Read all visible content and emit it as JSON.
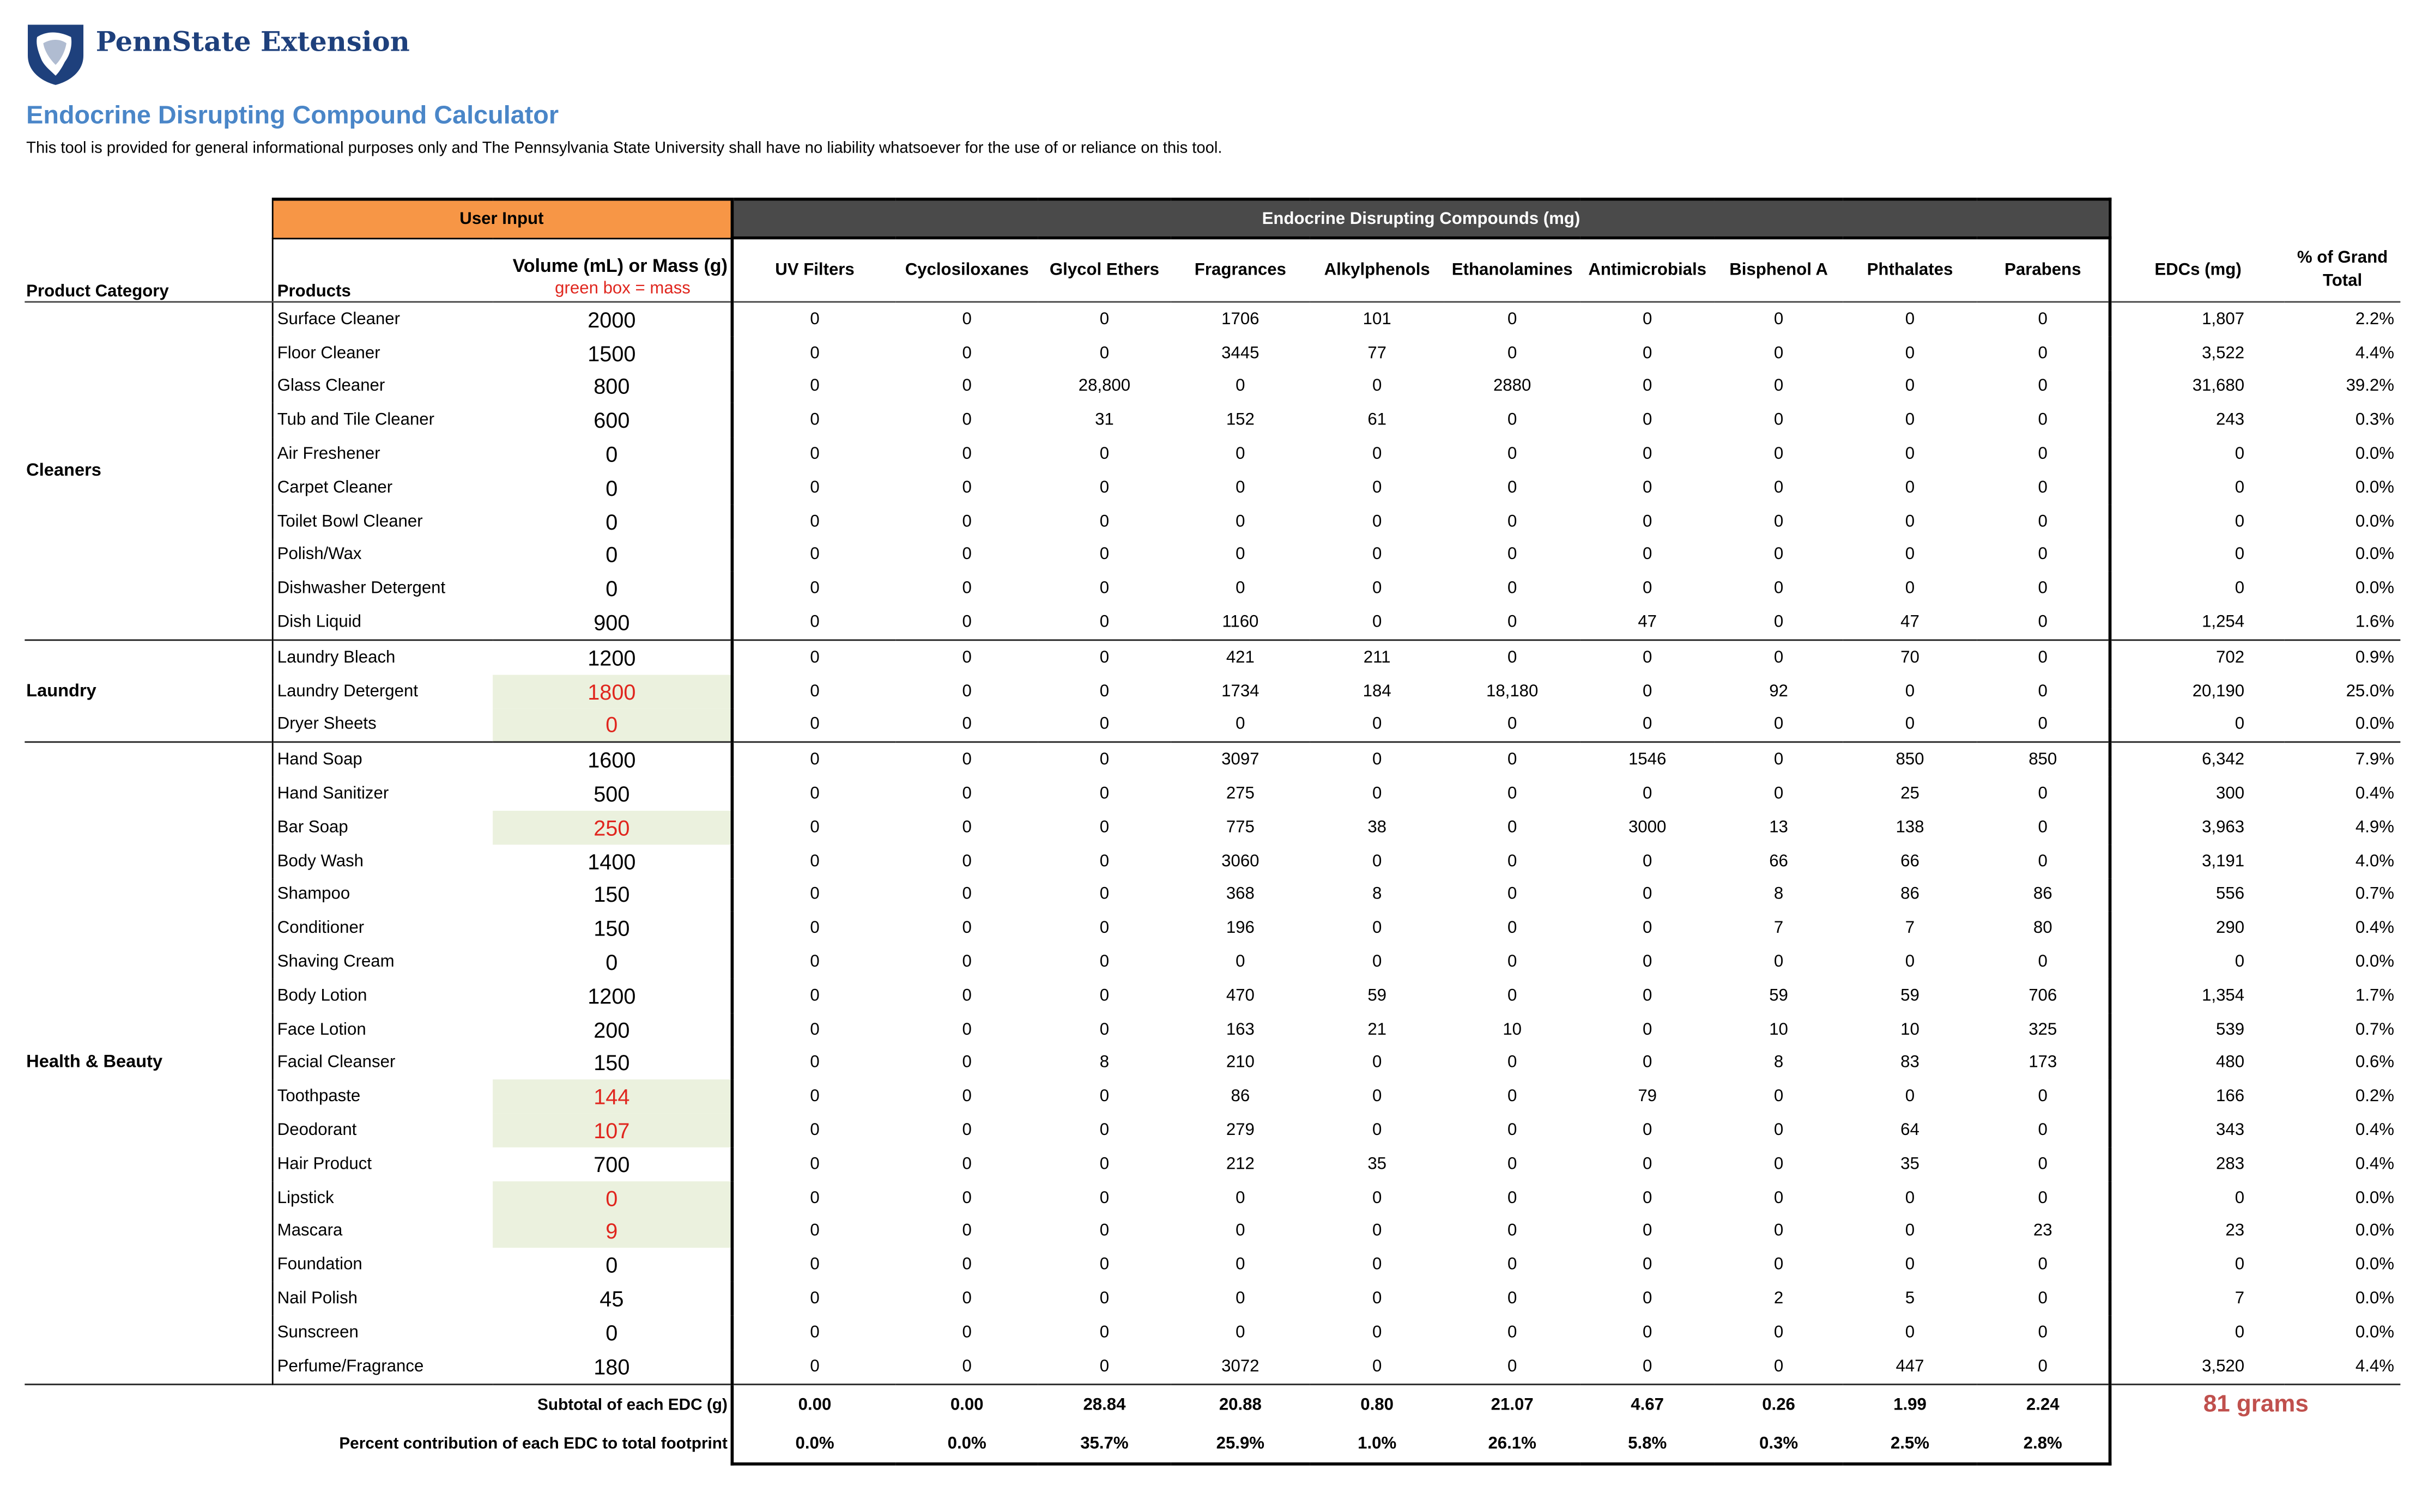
{
  "header": {
    "brand": "PennState Extension",
    "title": "Endocrine Disrupting Compound Calculator",
    "disclaimer": "This tool is provided for general informational purposes only and The Pennsylvania State University shall have no liability whatsoever for the use of or reliance on this tool."
  },
  "table": {
    "user_input": "User Input",
    "edc_group": "Endocrine Disrupting Compounds (mg)",
    "columns": {
      "category": "Product Category",
      "product": "Products",
      "volume": "Volume (mL) or Mass (g)",
      "volume_note": "green box = mass",
      "compounds": [
        "UV Filters",
        "Cyclosiloxanes",
        "Glycol Ethers",
        "Fragrances",
        "Alkylphenols",
        "Ethanolamines",
        "Antimicrobials",
        "Bisphenol A",
        "Phthalates",
        "Parabens"
      ],
      "edcs": "EDCs (mg)",
      "percent": "% of Grand Total"
    },
    "groups": [
      {
        "category": "Cleaners",
        "rows": [
          {
            "product": "Surface Cleaner",
            "volume": "2000",
            "mass": false,
            "cells": [
              "0",
              "0",
              "0",
              "1706",
              "101",
              "0",
              "0",
              "0",
              "0",
              "0"
            ],
            "edcs": "1,807",
            "percent": "2.2%"
          },
          {
            "product": "Floor Cleaner",
            "volume": "1500",
            "mass": false,
            "cells": [
              "0",
              "0",
              "0",
              "3445",
              "77",
              "0",
              "0",
              "0",
              "0",
              "0"
            ],
            "edcs": "3,522",
            "percent": "4.4%"
          },
          {
            "product": "Glass Cleaner",
            "volume": "800",
            "mass": false,
            "cells": [
              "0",
              "0",
              "28,800",
              "0",
              "0",
              "2880",
              "0",
              "0",
              "0",
              "0"
            ],
            "edcs": "31,680",
            "percent": "39.2%"
          },
          {
            "product": "Tub and Tile Cleaner",
            "volume": "600",
            "mass": false,
            "cells": [
              "0",
              "0",
              "31",
              "152",
              "61",
              "0",
              "0",
              "0",
              "0",
              "0"
            ],
            "edcs": "243",
            "percent": "0.3%"
          },
          {
            "product": "Air Freshener",
            "volume": "0",
            "mass": false,
            "cells": [
              "0",
              "0",
              "0",
              "0",
              "0",
              "0",
              "0",
              "0",
              "0",
              "0"
            ],
            "edcs": "0",
            "percent": "0.0%"
          },
          {
            "product": "Carpet Cleaner",
            "volume": "0",
            "mass": false,
            "cells": [
              "0",
              "0",
              "0",
              "0",
              "0",
              "0",
              "0",
              "0",
              "0",
              "0"
            ],
            "edcs": "0",
            "percent": "0.0%"
          },
          {
            "product": "Toilet Bowl Cleaner",
            "volume": "0",
            "mass": false,
            "cells": [
              "0",
              "0",
              "0",
              "0",
              "0",
              "0",
              "0",
              "0",
              "0",
              "0"
            ],
            "edcs": "0",
            "percent": "0.0%"
          },
          {
            "product": "Polish/Wax",
            "volume": "0",
            "mass": false,
            "cells": [
              "0",
              "0",
              "0",
              "0",
              "0",
              "0",
              "0",
              "0",
              "0",
              "0"
            ],
            "edcs": "0",
            "percent": "0.0%"
          },
          {
            "product": "Dishwasher Detergent",
            "volume": "0",
            "mass": false,
            "cells": [
              "0",
              "0",
              "0",
              "0",
              "0",
              "0",
              "0",
              "0",
              "0",
              "0"
            ],
            "edcs": "0",
            "percent": "0.0%"
          },
          {
            "product": "Dish Liquid",
            "volume": "900",
            "mass": false,
            "cells": [
              "0",
              "0",
              "0",
              "1160",
              "0",
              "0",
              "47",
              "0",
              "47",
              "0"
            ],
            "edcs": "1,254",
            "percent": "1.6%"
          }
        ]
      },
      {
        "category": "Laundry",
        "rows": [
          {
            "product": "Laundry Bleach",
            "volume": "1200",
            "mass": false,
            "cells": [
              "0",
              "0",
              "0",
              "421",
              "211",
              "0",
              "0",
              "0",
              "70",
              "0"
            ],
            "edcs": "702",
            "percent": "0.9%"
          },
          {
            "product": "Laundry Detergent",
            "volume": "1800",
            "mass": true,
            "cells": [
              "0",
              "0",
              "0",
              "1734",
              "184",
              "18,180",
              "0",
              "92",
              "0",
              "0"
            ],
            "edcs": "20,190",
            "percent": "25.0%"
          },
          {
            "product": "Dryer Sheets",
            "volume": "0",
            "mass": true,
            "cells": [
              "0",
              "0",
              "0",
              "0",
              "0",
              "0",
              "0",
              "0",
              "0",
              "0"
            ],
            "edcs": "0",
            "percent": "0.0%"
          }
        ]
      },
      {
        "category": "Health & Beauty",
        "rows": [
          {
            "product": "Hand Soap",
            "volume": "1600",
            "mass": false,
            "cells": [
              "0",
              "0",
              "0",
              "3097",
              "0",
              "0",
              "1546",
              "0",
              "850",
              "850"
            ],
            "edcs": "6,342",
            "percent": "7.9%"
          },
          {
            "product": "Hand Sanitizer",
            "volume": "500",
            "mass": false,
            "cells": [
              "0",
              "0",
              "0",
              "275",
              "0",
              "0",
              "0",
              "0",
              "25",
              "0"
            ],
            "edcs": "300",
            "percent": "0.4%"
          },
          {
            "product": "Bar Soap",
            "volume": "250",
            "mass": true,
            "cells": [
              "0",
              "0",
              "0",
              "775",
              "38",
              "0",
              "3000",
              "13",
              "138",
              "0"
            ],
            "edcs": "3,963",
            "percent": "4.9%"
          },
          {
            "product": "Body Wash",
            "volume": "1400",
            "mass": false,
            "cells": [
              "0",
              "0",
              "0",
              "3060",
              "0",
              "0",
              "0",
              "66",
              "66",
              "0"
            ],
            "edcs": "3,191",
            "percent": "4.0%"
          },
          {
            "product": "Shampoo",
            "volume": "150",
            "mass": false,
            "cells": [
              "0",
              "0",
              "0",
              "368",
              "8",
              "0",
              "0",
              "8",
              "86",
              "86"
            ],
            "edcs": "556",
            "percent": "0.7%"
          },
          {
            "product": "Conditioner",
            "volume": "150",
            "mass": false,
            "cells": [
              "0",
              "0",
              "0",
              "196",
              "0",
              "0",
              "0",
              "7",
              "7",
              "80"
            ],
            "edcs": "290",
            "percent": "0.4%"
          },
          {
            "product": "Shaving Cream",
            "volume": "0",
            "mass": false,
            "cells": [
              "0",
              "0",
              "0",
              "0",
              "0",
              "0",
              "0",
              "0",
              "0",
              "0"
            ],
            "edcs": "0",
            "percent": "0.0%"
          },
          {
            "product": "Body Lotion",
            "volume": "1200",
            "mass": false,
            "cells": [
              "0",
              "0",
              "0",
              "470",
              "59",
              "0",
              "0",
              "59",
              "59",
              "706"
            ],
            "edcs": "1,354",
            "percent": "1.7%"
          },
          {
            "product": "Face Lotion",
            "volume": "200",
            "mass": false,
            "cells": [
              "0",
              "0",
              "0",
              "163",
              "21",
              "10",
              "0",
              "10",
              "10",
              "325"
            ],
            "edcs": "539",
            "percent": "0.7%"
          },
          {
            "product": "Facial Cleanser",
            "volume": "150",
            "mass": false,
            "cells": [
              "0",
              "0",
              "8",
              "210",
              "0",
              "0",
              "0",
              "8",
              "83",
              "173"
            ],
            "edcs": "480",
            "percent": "0.6%"
          },
          {
            "product": "Toothpaste",
            "volume": "144",
            "mass": true,
            "cells": [
              "0",
              "0",
              "0",
              "86",
              "0",
              "0",
              "79",
              "0",
              "0",
              "0"
            ],
            "edcs": "166",
            "percent": "0.2%"
          },
          {
            "product": "Deodorant",
            "volume": "107",
            "mass": true,
            "cells": [
              "0",
              "0",
              "0",
              "279",
              "0",
              "0",
              "0",
              "0",
              "64",
              "0"
            ],
            "edcs": "343",
            "percent": "0.4%"
          },
          {
            "product": "Hair Product",
            "volume": "700",
            "mass": false,
            "cells": [
              "0",
              "0",
              "0",
              "212",
              "35",
              "0",
              "0",
              "0",
              "35",
              "0"
            ],
            "edcs": "283",
            "percent": "0.4%"
          },
          {
            "product": "Lipstick",
            "volume": "0",
            "mass": true,
            "cells": [
              "0",
              "0",
              "0",
              "0",
              "0",
              "0",
              "0",
              "0",
              "0",
              "0"
            ],
            "edcs": "0",
            "percent": "0.0%"
          },
          {
            "product": "Mascara",
            "volume": "9",
            "mass": true,
            "cells": [
              "0",
              "0",
              "0",
              "0",
              "0",
              "0",
              "0",
              "0",
              "0",
              "23"
            ],
            "edcs": "23",
            "percent": "0.0%"
          },
          {
            "product": "Foundation",
            "volume": "0",
            "mass": false,
            "cells": [
              "0",
              "0",
              "0",
              "0",
              "0",
              "0",
              "0",
              "0",
              "0",
              "0"
            ],
            "edcs": "0",
            "percent": "0.0%"
          },
          {
            "product": "Nail Polish",
            "volume": "45",
            "mass": false,
            "cells": [
              "0",
              "0",
              "0",
              "0",
              "0",
              "0",
              "0",
              "2",
              "5",
              "0"
            ],
            "edcs": "7",
            "percent": "0.0%"
          },
          {
            "product": "Sunscreen",
            "volume": "0",
            "mass": false,
            "cells": [
              "0",
              "0",
              "0",
              "0",
              "0",
              "0",
              "0",
              "0",
              "0",
              "0"
            ],
            "edcs": "0",
            "percent": "0.0%"
          },
          {
            "product": "Perfume/Fragrance",
            "volume": "180",
            "mass": false,
            "cells": [
              "0",
              "0",
              "0",
              "3072",
              "0",
              "0",
              "0",
              "0",
              "447",
              "0"
            ],
            "edcs": "3,520",
            "percent": "4.4%"
          }
        ]
      }
    ],
    "subtotal": {
      "label": "Subtotal of each EDC (g)",
      "values": [
        "0.00",
        "0.00",
        "28.84",
        "20.88",
        "0.80",
        "21.07",
        "4.67",
        "0.26",
        "1.99",
        "2.24"
      ],
      "total": "81 grams"
    },
    "contribution": {
      "label": "Percent contribution of each EDC to total footprint",
      "values": [
        "0.0%",
        "0.0%",
        "35.7%",
        "25.9%",
        "1.0%",
        "26.1%",
        "5.8%",
        "0.3%",
        "2.5%",
        "2.8%"
      ]
    }
  }
}
